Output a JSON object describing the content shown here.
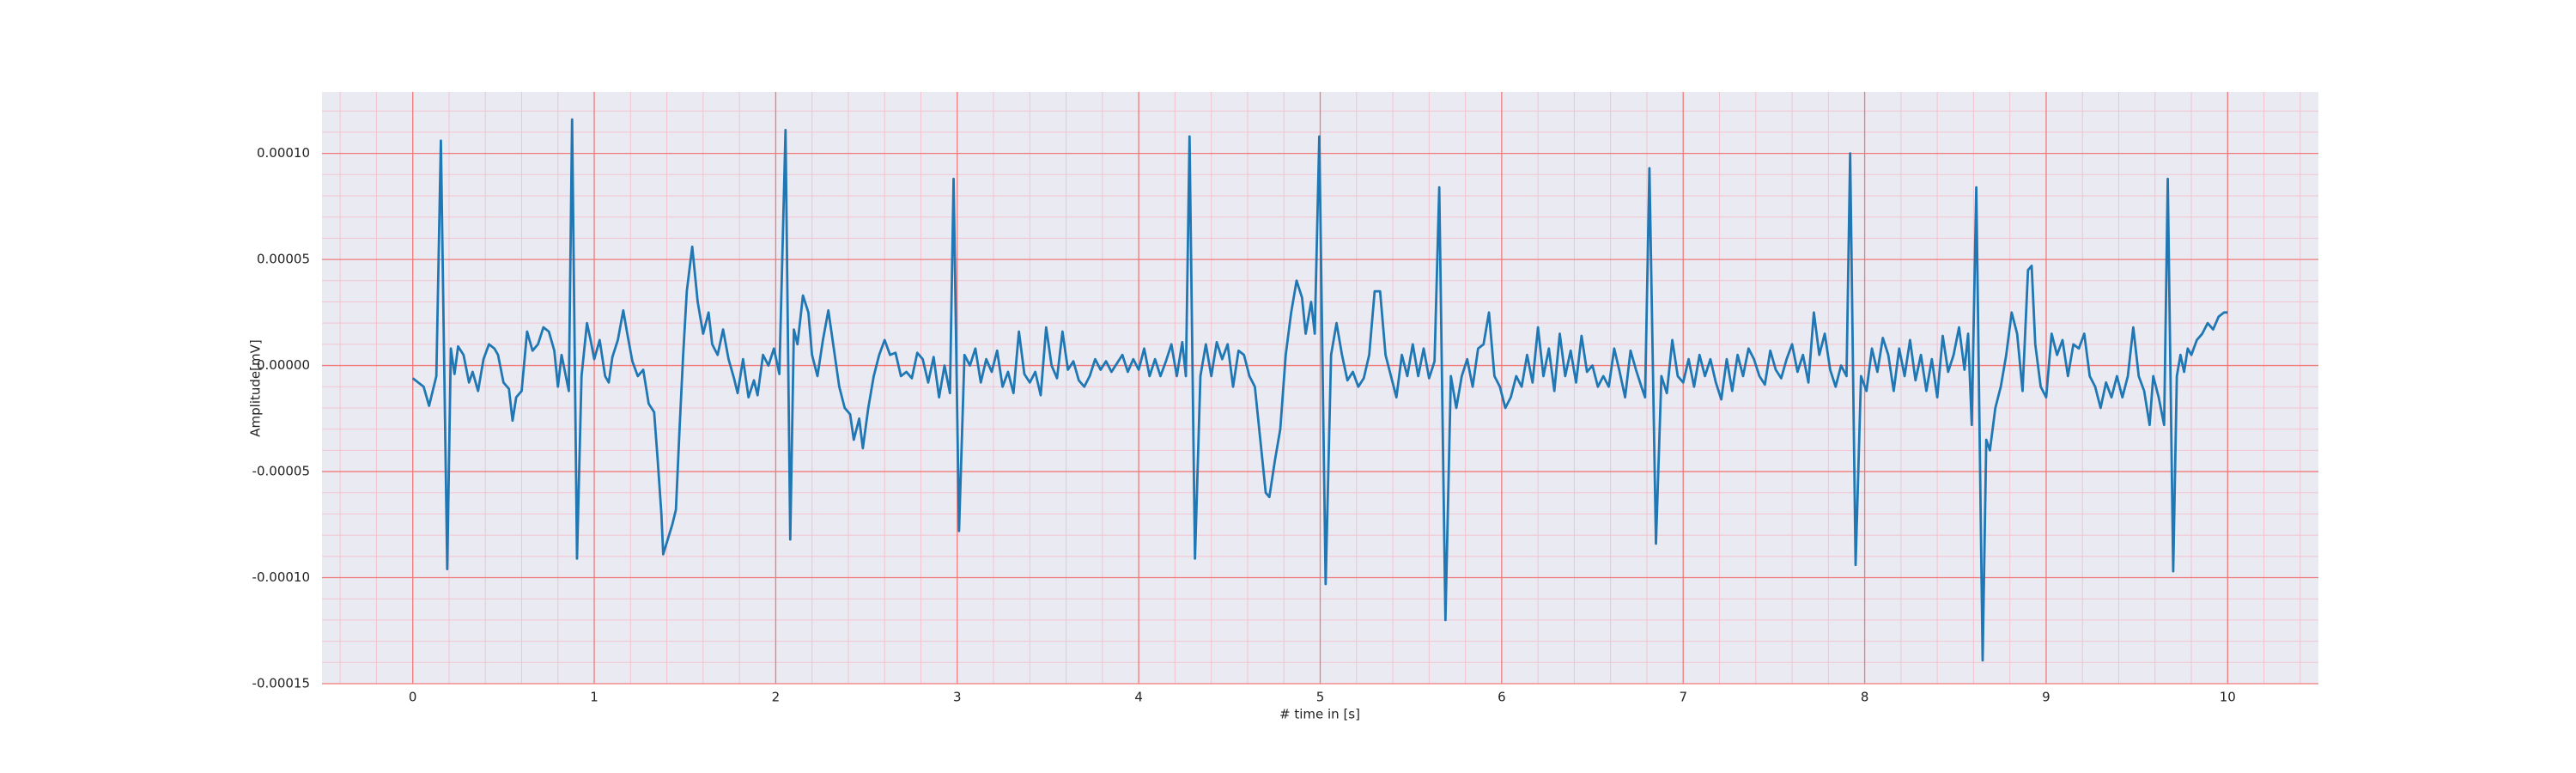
{
  "chart_data": {
    "type": "line",
    "xlabel": "# time in [s]",
    "ylabel": "Amplitude[mV]",
    "xlim": [
      -0.5,
      10.5
    ],
    "ylim": [
      -0.00015,
      0.000129
    ],
    "xticks": [
      0,
      1,
      2,
      3,
      4,
      5,
      6,
      7,
      8,
      9,
      10
    ],
    "yticks": [
      -0.00015,
      {
        "value": -0.0001,
        "label": "-0.00010"
      },
      -5e-05,
      {
        "value": 0,
        "label": "0.00000"
      },
      5e-05,
      {
        "value": 0.0001,
        "label": "0.00010"
      }
    ],
    "grid": true,
    "minor_grid": true,
    "background": "#eaeaf2",
    "grid_color": "#f07a7a",
    "minor_grid_color": "#f2c4cf",
    "series": [
      {
        "color": "#1f77b4",
        "x": [
          0,
          0.03,
          0.06,
          0.09,
          0.11,
          0.13,
          0.155,
          0.19,
          0.21,
          0.23,
          0.25,
          0.28,
          0.31,
          0.33,
          0.36,
          0.39,
          0.42,
          0.45,
          0.47,
          0.5,
          0.53,
          0.55,
          0.57,
          0.6,
          0.63,
          0.66,
          0.69,
          0.72,
          0.75,
          0.78,
          0.8,
          0.82,
          0.86,
          0.878,
          0.905,
          0.93,
          0.96,
          0.98,
          1.0,
          1.03,
          1.06,
          1.08,
          1.1,
          1.13,
          1.16,
          1.18,
          1.21,
          1.24,
          1.27,
          1.3,
          1.33,
          1.35,
          1.37,
          1.38,
          1.43,
          1.45,
          1.47,
          1.49,
          1.51,
          1.54,
          1.57,
          1.6,
          1.63,
          1.65,
          1.68,
          1.71,
          1.74,
          1.77,
          1.79,
          1.82,
          1.85,
          1.88,
          1.9,
          1.93,
          1.96,
          1.99,
          2.02,
          2.054,
          2.08,
          2.1,
          2.12,
          2.15,
          2.18,
          2.2,
          2.23,
          2.26,
          2.29,
          2.32,
          2.35,
          2.38,
          2.41,
          2.43,
          2.46,
          2.48,
          2.51,
          2.54,
          2.57,
          2.6,
          2.63,
          2.66,
          2.69,
          2.72,
          2.75,
          2.78,
          2.81,
          2.84,
          2.87,
          2.9,
          2.93,
          2.96,
          2.98,
          3.01,
          3.04,
          3.07,
          3.1,
          3.13,
          3.16,
          3.19,
          3.22,
          3.25,
          3.28,
          3.31,
          3.34,
          3.37,
          3.4,
          3.43,
          3.46,
          3.49,
          3.52,
          3.55,
          3.58,
          3.61,
          3.64,
          3.67,
          3.7,
          3.73,
          3.76,
          3.79,
          3.82,
          3.85,
          3.88,
          3.91,
          3.94,
          3.97,
          4.0,
          4.03,
          4.06,
          4.09,
          4.12,
          4.15,
          4.18,
          4.21,
          4.24,
          4.26,
          4.28,
          4.31,
          4.34,
          4.37,
          4.4,
          4.43,
          4.46,
          4.49,
          4.52,
          4.55,
          4.58,
          4.61,
          4.64,
          4.67,
          4.7,
          4.72,
          4.75,
          4.78,
          4.81,
          4.84,
          4.87,
          4.9,
          4.92,
          4.95,
          4.97,
          4.995,
          5.03,
          5.06,
          5.09,
          5.12,
          5.15,
          5.18,
          5.21,
          5.24,
          5.27,
          5.3,
          5.33,
          5.36,
          5.39,
          5.42,
          5.45,
          5.48,
          5.51,
          5.54,
          5.57,
          5.6,
          5.63,
          5.656,
          5.69,
          5.72,
          5.75,
          5.78,
          5.81,
          5.84,
          5.87,
          5.9,
          5.93,
          5.96,
          5.99,
          6.02,
          6.05,
          6.08,
          6.11,
          6.14,
          6.17,
          6.2,
          6.23,
          6.26,
          6.29,
          6.32,
          6.35,
          6.38,
          6.41,
          6.44,
          6.47,
          6.5,
          6.53,
          6.56,
          6.59,
          6.62,
          6.65,
          6.68,
          6.71,
          6.74,
          6.77,
          6.79,
          6.814,
          6.85,
          6.88,
          6.91,
          6.94,
          6.97,
          7.0,
          7.03,
          7.06,
          7.09,
          7.12,
          7.15,
          7.18,
          7.21,
          7.24,
          7.27,
          7.3,
          7.33,
          7.36,
          7.39,
          7.42,
          7.45,
          7.48,
          7.51,
          7.54,
          7.57,
          7.6,
          7.63,
          7.66,
          7.69,
          7.72,
          7.75,
          7.78,
          7.81,
          7.84,
          7.87,
          7.9,
          7.92,
          7.95,
          7.98,
          8.01,
          8.04,
          8.07,
          8.1,
          8.13,
          8.16,
          8.19,
          8.22,
          8.25,
          8.28,
          8.31,
          8.34,
          8.37,
          8.4,
          8.43,
          8.46,
          8.49,
          8.52,
          8.55,
          8.57,
          8.59,
          8.615,
          8.65,
          8.67,
          8.69,
          8.72,
          8.75,
          8.78,
          8.81,
          8.84,
          8.87,
          8.9,
          8.92,
          8.94,
          8.97,
          9.0,
          9.03,
          9.06,
          9.09,
          9.12,
          9.15,
          9.18,
          9.21,
          9.24,
          9.27,
          9.3,
          9.33,
          9.36,
          9.39,
          9.42,
          9.45,
          9.48,
          9.51,
          9.54,
          9.57,
          9.59,
          9.62,
          9.65,
          9.67,
          9.7,
          9.72,
          9.74,
          9.76,
          9.78,
          9.8,
          9.83,
          9.86,
          9.89,
          9.92,
          9.95,
          9.98,
          10.0
        ],
        "values": [
          -6e-06,
          -8e-06,
          -1e-05,
          -1.9e-05,
          -1.2e-05,
          -5e-06,
          0.000106,
          -9.6e-05,
          8e-06,
          -4e-06,
          9e-06,
          5e-06,
          -8e-06,
          -3e-06,
          -1.2e-05,
          3e-06,
          1e-05,
          8e-06,
          5e-06,
          -8e-06,
          -1.1e-05,
          -2.6e-05,
          -1.5e-05,
          -1.2e-05,
          1.6e-05,
          7e-06,
          1e-05,
          1.8e-05,
          1.6e-05,
          7e-06,
          -1e-05,
          5e-06,
          -1.2e-05,
          0.000116,
          -9.1e-05,
          -5e-06,
          2e-05,
          1.2e-05,
          3e-06,
          1.2e-05,
          -5e-06,
          -8e-06,
          4e-06,
          1.2e-05,
          2.6e-05,
          1.6e-05,
          2e-06,
          -5e-06,
          -2e-06,
          -1.8e-05,
          -2.2e-05,
          -4.5e-05,
          -7e-05,
          -8.9e-05,
          -7.5e-05,
          -6.8e-05,
          -3e-05,
          5e-06,
          3.5e-05,
          5.6e-05,
          3e-05,
          1.5e-05,
          2.5e-05,
          1e-05,
          5e-06,
          1.7e-05,
          3e-06,
          -6e-06,
          -1.3e-05,
          3e-06,
          -1.5e-05,
          -7e-06,
          -1.4e-05,
          5e-06,
          0.0,
          8e-06,
          -4e-06,
          0.000111,
          -8.2e-05,
          1.7e-05,
          1e-05,
          3.3e-05,
          2.5e-05,
          5e-06,
          -5e-06,
          1.2e-05,
          2.6e-05,
          8e-06,
          -1e-05,
          -2e-05,
          -2.3e-05,
          -3.5e-05,
          -2.5e-05,
          -3.9e-05,
          -2e-05,
          -5e-06,
          5e-06,
          1.2e-05,
          5e-06,
          6e-06,
          -5e-06,
          -3e-06,
          -6e-06,
          6e-06,
          3e-06,
          -8e-06,
          4e-06,
          -1.5e-05,
          0.0,
          -1.3e-05,
          8.8e-05,
          -7.8e-05,
          5e-06,
          0.0,
          8e-06,
          -8e-06,
          3e-06,
          -3e-06,
          7e-06,
          -1e-05,
          -3e-06,
          -1.3e-05,
          1.6e-05,
          -4e-06,
          -8e-06,
          -3e-06,
          -1.4e-05,
          1.8e-05,
          0.0,
          -6e-06,
          1.6e-05,
          -2e-06,
          2e-06,
          -7e-06,
          -1e-05,
          -5e-06,
          3e-06,
          -2e-06,
          2e-06,
          -3e-06,
          1e-06,
          5e-06,
          -3e-06,
          3e-06,
          -2e-06,
          8e-06,
          -5e-06,
          3e-06,
          -5e-06,
          2e-06,
          1e-05,
          -5e-06,
          1.1e-05,
          -5e-06,
          0.000108,
          -9.1e-05,
          -5e-06,
          1e-05,
          -5e-06,
          1.1e-05,
          3e-06,
          1e-05,
          -1e-05,
          7e-06,
          5e-06,
          -5e-06,
          -1e-05,
          -3.5e-05,
          -6e-05,
          -6.2e-05,
          -4.5e-05,
          -3e-05,
          5e-06,
          2.5e-05,
          4e-05,
          3.2e-05,
          1.5e-05,
          3e-05,
          1.5e-05,
          0.000108,
          -0.000103,
          5e-06,
          2e-05,
          5e-06,
          -7e-06,
          -3e-06,
          -1e-05,
          -6e-06,
          5e-06,
          3.5e-05,
          3.5e-05,
          5e-06,
          -5e-06,
          -1.5e-05,
          5e-06,
          -5e-06,
          1e-05,
          -5e-06,
          8e-06,
          -6e-06,
          2e-06,
          8.4e-05,
          -0.00012,
          -5e-06,
          -2e-05,
          -5e-06,
          3e-06,
          -1e-05,
          8e-06,
          1e-05,
          2.5e-05,
          -5e-06,
          -1e-05,
          -2e-05,
          -1.5e-05,
          -5e-06,
          -1e-05,
          5e-06,
          -8e-06,
          1.8e-05,
          -5e-06,
          8e-06,
          -1.2e-05,
          1.5e-05,
          -5e-06,
          7e-06,
          -8e-06,
          1.4e-05,
          -3e-06,
          0.0,
          -1e-05,
          -5e-06,
          -1e-05,
          8e-06,
          -3e-06,
          -1.5e-05,
          7e-06,
          -2e-06,
          -1e-05,
          -1.5e-05,
          9.3e-05,
          -8.4e-05,
          -5e-06,
          -1.3e-05,
          1.2e-05,
          -5e-06,
          -8e-06,
          3e-06,
          -1e-05,
          5e-06,
          -5e-06,
          3e-06,
          -8e-06,
          -1.6e-05,
          3e-06,
          -1.2e-05,
          5e-06,
          -5e-06,
          8e-06,
          3e-06,
          -5e-06,
          -9e-06,
          7e-06,
          -2e-06,
          -6e-06,
          3e-06,
          1e-05,
          -3e-06,
          5e-06,
          -8e-06,
          2.5e-05,
          5e-06,
          1.5e-05,
          -2e-06,
          -1e-05,
          0.0,
          -5e-06,
          0.0001,
          -9.4e-05,
          -5e-06,
          -1.2e-05,
          8e-06,
          -3e-06,
          1.3e-05,
          5e-06,
          -1.2e-05,
          8e-06,
          -5e-06,
          1.2e-05,
          -7e-06,
          5e-06,
          -1.2e-05,
          3e-06,
          -1.5e-05,
          1.4e-05,
          -3e-06,
          5e-06,
          1.8e-05,
          -2e-06,
          1.5e-05,
          -2.8e-05,
          8.4e-05,
          -0.000139,
          -3.5e-05,
          -4e-05,
          -2e-05,
          -1e-05,
          5e-06,
          2.5e-05,
          1.5e-05,
          -1.2e-05,
          4.5e-05,
          4.7e-05,
          1e-05,
          -1e-05,
          -1.5e-05,
          1.5e-05,
          5e-06,
          1.2e-05,
          -5e-06,
          1e-05,
          8e-06,
          1.5e-05,
          -5e-06,
          -1e-05,
          -2e-05,
          -8e-06,
          -1.5e-05,
          -5e-06,
          -1.5e-05,
          -5e-06,
          1.8e-05,
          -5e-06,
          -1.2e-05,
          -2.8e-05,
          -5e-06,
          -1.5e-05,
          -2.8e-05,
          8.8e-05,
          -9.7e-05,
          -5e-06,
          5e-06,
          -3e-06,
          8e-06,
          5e-06,
          1.2e-05,
          1.5e-05,
          2e-05,
          1.7e-05,
          2.3e-05,
          2.5e-05,
          2.5e-05
        ]
      }
    ]
  }
}
